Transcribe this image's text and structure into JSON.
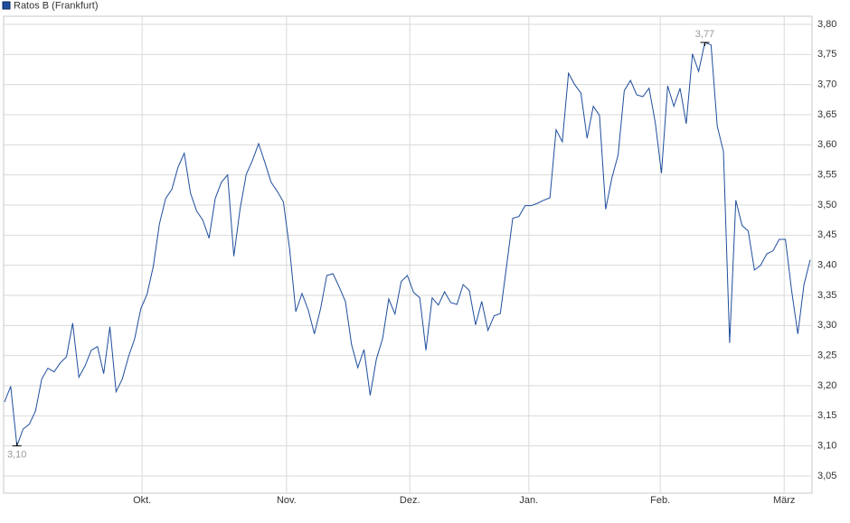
{
  "chart_data": {
    "type": "line",
    "series": [
      {
        "name": "Ratos B (Frankfurt)",
        "color": "#1f4e9c",
        "values": [
          3.173,
          3.199,
          3.1,
          3.128,
          3.136,
          3.158,
          3.211,
          3.229,
          3.223,
          3.238,
          3.248,
          3.304,
          3.214,
          3.233,
          3.259,
          3.265,
          3.22,
          3.298,
          3.19,
          3.211,
          3.248,
          3.278,
          3.328,
          3.352,
          3.398,
          3.469,
          3.511,
          3.526,
          3.563,
          3.586,
          3.52,
          3.49,
          3.475,
          3.445,
          3.511,
          3.538,
          3.55,
          3.415,
          3.493,
          3.551,
          3.574,
          3.602,
          3.571,
          3.538,
          3.523,
          3.505,
          3.427,
          3.323,
          3.353,
          3.326,
          3.286,
          3.328,
          3.383,
          3.386,
          3.364,
          3.34,
          3.268,
          3.23,
          3.26,
          3.184,
          3.244,
          3.278,
          3.344,
          3.319,
          3.373,
          3.383,
          3.355,
          3.346,
          3.259,
          3.346,
          3.334,
          3.356,
          3.338,
          3.335,
          3.368,
          3.358,
          3.301,
          3.34,
          3.292,
          3.316,
          3.32,
          3.398,
          3.478,
          3.481,
          3.499,
          3.499,
          3.503,
          3.508,
          3.512,
          3.625,
          3.605,
          3.719,
          3.7,
          3.686,
          3.611,
          3.664,
          3.649,
          3.493,
          3.545,
          3.583,
          3.69,
          3.707,
          3.683,
          3.68,
          3.694,
          3.637,
          3.553,
          3.698,
          3.664,
          3.694,
          3.635,
          3.751,
          3.722,
          3.77,
          3.766,
          3.631,
          3.589,
          3.271,
          3.508,
          3.466,
          3.457,
          3.392,
          3.4,
          3.419,
          3.424,
          3.443,
          3.443,
          3.358,
          3.286,
          3.368,
          3.409
        ]
      }
    ],
    "xlim": [
      0,
      130
    ],
    "xticks": [
      {
        "value": 22.2,
        "label": "Okt."
      },
      {
        "value": 45.5,
        "label": "Nov."
      },
      {
        "value": 65.4,
        "label": "Dez."
      },
      {
        "value": 84.6,
        "label": "Jan."
      },
      {
        "value": 105.8,
        "label": "Feb."
      },
      {
        "value": 125.8,
        "label": "März"
      }
    ],
    "ylim": [
      3.0215,
      3.8135
    ],
    "yticks": [
      {
        "value": 3.05,
        "label": "3,05"
      },
      {
        "value": 3.1,
        "label": "3,10"
      },
      {
        "value": 3.15,
        "label": "3,15"
      },
      {
        "value": 3.2,
        "label": "3,20"
      },
      {
        "value": 3.25,
        "label": "3,25"
      },
      {
        "value": 3.3,
        "label": "3,30"
      },
      {
        "value": 3.35,
        "label": "3,35"
      },
      {
        "value": 3.4,
        "label": "3,40"
      },
      {
        "value": 3.45,
        "label": "3,45"
      },
      {
        "value": 3.5,
        "label": "3,50"
      },
      {
        "value": 3.55,
        "label": "3,55"
      },
      {
        "value": 3.6,
        "label": "3,60"
      },
      {
        "value": 3.65,
        "label": "3,65"
      },
      {
        "value": 3.7,
        "label": "3,70"
      },
      {
        "value": 3.75,
        "label": "3,75"
      },
      {
        "value": 3.8,
        "label": "3,80"
      }
    ],
    "grid": true,
    "annotations": [
      {
        "x": 2,
        "value": 3.1,
        "label": "3,10",
        "position": "below"
      },
      {
        "x": 113,
        "value": 3.77,
        "label": "3,77",
        "position": "above"
      }
    ]
  }
}
